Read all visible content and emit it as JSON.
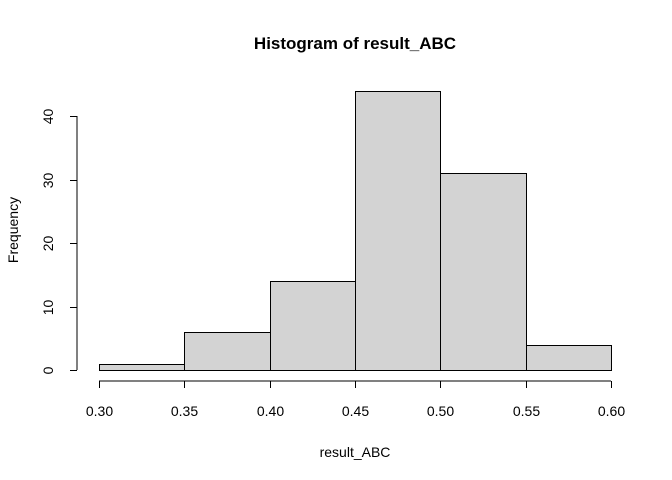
{
  "chart_data": {
    "type": "bar",
    "title": "Histogram of result_ABC",
    "xlabel": "result_ABC",
    "ylabel": "Frequency",
    "bins": [
      {
        "from": 0.3,
        "to": 0.35,
        "count": 1
      },
      {
        "from": 0.35,
        "to": 0.4,
        "count": 6
      },
      {
        "from": 0.4,
        "to": 0.45,
        "count": 14
      },
      {
        "from": 0.45,
        "to": 0.5,
        "count": 44
      },
      {
        "from": 0.5,
        "to": 0.55,
        "count": 31
      },
      {
        "from": 0.55,
        "to": 0.6,
        "count": 4
      }
    ],
    "x_ticks": [
      "0.30",
      "0.35",
      "0.40",
      "0.45",
      "0.50",
      "0.55",
      "0.60"
    ],
    "y_ticks": [
      "0",
      "10",
      "20",
      "30",
      "40"
    ],
    "xlim": [
      0.3,
      0.6
    ],
    "ylim": [
      0,
      44
    ],
    "bar_fill": "#d3d3d3",
    "grid": false
  }
}
